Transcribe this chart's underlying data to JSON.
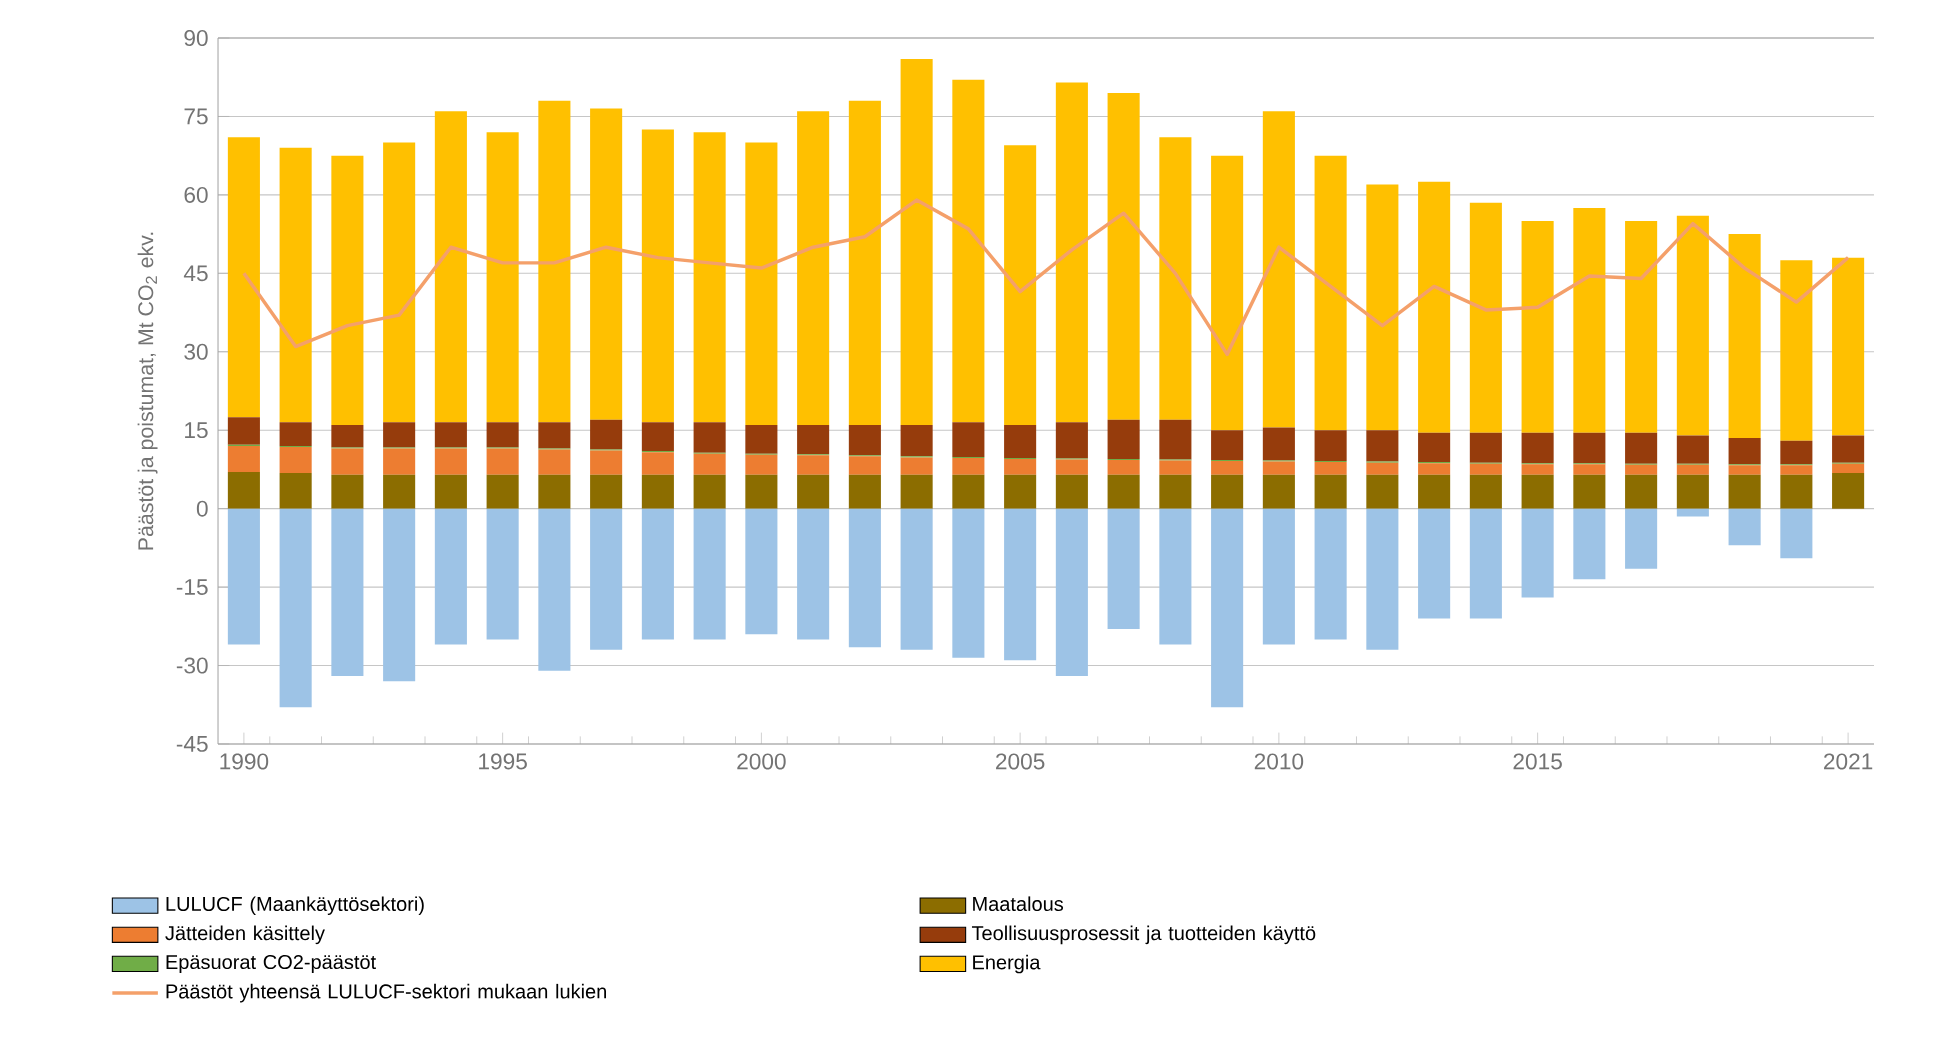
{
  "chart_data": {
    "type": "bar",
    "stacked": true,
    "ylabel": "Päästöt ja poistumat, Mt CO$_{2}$ ekv.",
    "x": [
      1990,
      1991,
      1992,
      1993,
      1994,
      1995,
      1996,
      1997,
      1998,
      1999,
      2000,
      2001,
      2002,
      2003,
      2004,
      2005,
      2006,
      2007,
      2008,
      2009,
      2010,
      2011,
      2012,
      2013,
      2014,
      2015,
      2016,
      2017,
      2018,
      2019,
      2020,
      2021
    ],
    "xlim": [
      1989.5,
      2021.5
    ],
    "xticks": [
      1990,
      1995,
      2000,
      2005,
      2010,
      2015,
      2021
    ],
    "ylim": [
      -45,
      90
    ],
    "yticks": [
      -45,
      -30,
      -15,
      0,
      15,
      30,
      45,
      60,
      75,
      90
    ],
    "grid": "y",
    "legend": "bottom",
    "series": [
      {
        "name": "LULUCF (Maankäyttösektori)",
        "color": "#9dc3e6",
        "values": [
          -26,
          -38,
          -32,
          -33,
          -26,
          -25,
          -31,
          -27,
          -25,
          -25,
          -24,
          -25,
          -26.5,
          -27,
          -28.5,
          -29,
          -32,
          -23,
          -26,
          -38,
          -26,
          -25,
          -27,
          -21,
          -21,
          -17,
          -13.5,
          -11.5,
          -1.5,
          -7,
          -9.5,
          0
        ]
      },
      {
        "name": "Maatalous",
        "color": "#8c6d00",
        "values": [
          7,
          6.8,
          6.5,
          6.5,
          6.5,
          6.5,
          6.5,
          6.5,
          6.5,
          6.5,
          6.5,
          6.5,
          6.5,
          6.5,
          6.5,
          6.5,
          6.5,
          6.5,
          6.5,
          6.5,
          6.5,
          6.5,
          6.5,
          6.5,
          6.5,
          6.5,
          6.5,
          6.5,
          6.5,
          6.5,
          6.5,
          6.8
        ]
      },
      {
        "name": "Jätteiden käsittely",
        "color": "#ed7d31",
        "values": [
          5,
          5,
          5,
          5,
          5,
          5,
          4.8,
          4.6,
          4.3,
          4,
          3.8,
          3.7,
          3.5,
          3.3,
          3.2,
          3,
          2.9,
          2.8,
          2.7,
          2.6,
          2.5,
          2.4,
          2.3,
          2.2,
          2.1,
          2,
          2,
          1.9,
          1.9,
          1.8,
          1.8,
          1.8
        ]
      },
      {
        "name": "Epäsuorat CO2-päästöt",
        "color": "#70ad47",
        "values": [
          0.2,
          0.2,
          0.2,
          0.2,
          0.2,
          0.2,
          0.2,
          0.2,
          0.2,
          0.2,
          0.2,
          0.2,
          0.2,
          0.2,
          0.2,
          0.2,
          0.2,
          0.2,
          0.2,
          0.2,
          0.2,
          0.2,
          0.2,
          0.2,
          0.2,
          0.2,
          0.2,
          0.2,
          0.2,
          0.2,
          0.2,
          0.2
        ]
      },
      {
        "name": "Teollisuusprosessit ja tuotteiden käyttö",
        "color": "#963c0c",
        "values": [
          5.3,
          4.5,
          4.3,
          4.8,
          4.8,
          4.8,
          5,
          5.7,
          5.5,
          5.8,
          5.5,
          5.6,
          5.8,
          6,
          6.6,
          6.3,
          6.9,
          7.5,
          7.6,
          5.7,
          6.3,
          5.9,
          6,
          5.6,
          5.7,
          5.8,
          5.8,
          5.9,
          5.4,
          5,
          4.5,
          5.2
        ]
      },
      {
        "name": "Energia",
        "color": "#ffc000",
        "values": [
          53.5,
          52.5,
          51.5,
          53.5,
          59.5,
          55.5,
          61.5,
          59.5,
          56,
          55.5,
          54,
          60,
          62,
          70,
          65.5,
          53.5,
          65,
          62.5,
          54,
          52.5,
          60.5,
          52.5,
          47,
          48,
          44,
          40.5,
          43,
          40.5,
          42,
          39,
          34.5,
          34
        ]
      },
      {
        "name": "Päästöt yhteensä LULUCF-sektori mukaan lukien",
        "type": "line",
        "color": "#f4a06a",
        "values": [
          45,
          31,
          35,
          37,
          50,
          47,
          47,
          50,
          48,
          47,
          46,
          50,
          52,
          59,
          53.5,
          41.5,
          49.5,
          56.5,
          45,
          29.5,
          50,
          42.5,
          35,
          42.5,
          38,
          38.5,
          44.5,
          44,
          54.5,
          46,
          39.5,
          48
        ]
      }
    ]
  }
}
